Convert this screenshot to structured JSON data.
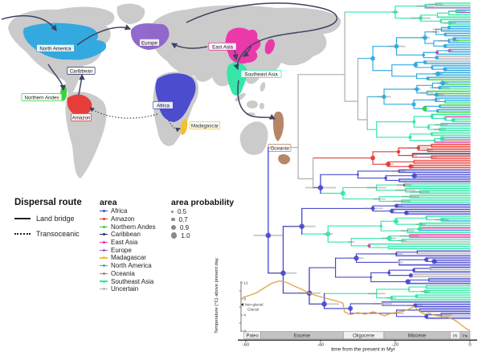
{
  "map": {
    "region_labels": [
      {
        "id": "northamerica",
        "label": "North America"
      },
      {
        "id": "europe",
        "label": "Europe"
      },
      {
        "id": "eastasia",
        "label": "East Asia"
      },
      {
        "id": "seasia",
        "label": "Southeast Asia"
      },
      {
        "id": "caribbean",
        "label": "Caribbean"
      },
      {
        "id": "andes",
        "label": "Northern Andes"
      },
      {
        "id": "amazon",
        "label": "Amazon"
      },
      {
        "id": "africa",
        "label": "Africa"
      },
      {
        "id": "madagascar",
        "label": "Madagascar"
      },
      {
        "id": "oceania",
        "label": "Oceania"
      }
    ]
  },
  "legend": {
    "dispersal": {
      "title": "Dispersal route",
      "items": [
        {
          "label": "Land bridge",
          "style": "solid"
        },
        {
          "label": "Transoceanic",
          "style": "dotted"
        }
      ]
    },
    "area": {
      "title": "area",
      "items": [
        {
          "key": "africa",
          "name": "Africa",
          "color": "#4545cf"
        },
        {
          "key": "amazon",
          "name": "Amazon",
          "color": "#e8352f"
        },
        {
          "key": "andes",
          "name": "Northern Andes",
          "color": "#2fd32f"
        },
        {
          "key": "caribbean",
          "name": "Caribbean",
          "color": "#1f2d69"
        },
        {
          "key": "eastasia",
          "name": "East Asia",
          "color": "#ec30a8"
        },
        {
          "key": "europe",
          "name": "Europe",
          "color": "#8b62c9"
        },
        {
          "key": "madagascar",
          "name": "Madagascar",
          "color": "#f2c12e"
        },
        {
          "key": "northamerica",
          "name": "North America",
          "color": "#2aa7e0"
        },
        {
          "key": "oceania",
          "name": "Oceania",
          "color": "#b37f5e"
        },
        {
          "key": "seasia",
          "name": "Southeast Asia",
          "color": "#2ee6a4"
        },
        {
          "key": "uncertain",
          "name": "Uncertain",
          "color": "#b3b3b3"
        }
      ]
    },
    "probability": {
      "title": "area probability",
      "items": [
        {
          "value": "0.5",
          "size": 3
        },
        {
          "value": "0.7",
          "size": 4.6
        },
        {
          "value": "0.9",
          "size": 6
        },
        {
          "value": "1.0",
          "size": 7.4
        }
      ]
    }
  },
  "axes": {
    "time": {
      "label": "time from the present in Myr",
      "ticks": [
        "-60",
        "-40",
        "-20",
        "0"
      ],
      "tick_values": [
        -60,
        -40,
        -20,
        0
      ]
    },
    "temperature": {
      "label": "Temperature (°C) above present day",
      "ticks": [
        0,
        4,
        8,
        12
      ],
      "annotations": [
        "Non-glacial",
        "Glacial"
      ]
    }
  },
  "geo_eras": [
    {
      "name": "Paleo",
      "from": -60.5,
      "to": -56,
      "shade": "light"
    },
    {
      "name": "Eocene",
      "from": -56,
      "to": -33.9,
      "shade": "dark"
    },
    {
      "name": "Oligocene",
      "from": -33.9,
      "to": -23.03,
      "shade": "light"
    },
    {
      "name": "Miocene",
      "from": -23.03,
      "to": -5.33,
      "shade": "dark"
    },
    {
      "name": "Pli",
      "from": -5.33,
      "to": -2.58,
      "shade": "light"
    },
    {
      "name": "Ple",
      "from": -2.58,
      "to": 0,
      "shade": "dark"
    }
  ],
  "chart_data": {
    "type": "composite",
    "panels": [
      {
        "type": "map-dispersal",
        "title": "Dispersal route",
        "routes": [
          {
            "from": "East Asia",
            "to": "North America",
            "type": "land bridge"
          },
          {
            "from": "North America",
            "to": "Europe",
            "type": "land bridge"
          },
          {
            "from": "East Asia",
            "to": "Europe",
            "type": "land bridge"
          },
          {
            "from": "Europe",
            "to": "East Asia",
            "type": "land bridge"
          },
          {
            "from": "East Asia",
            "to": "Southeast Asia",
            "type": "land bridge"
          },
          {
            "from": "North America",
            "to": "Northern Andes",
            "type": "land bridge"
          },
          {
            "from": "Amazon",
            "to": "Caribbean",
            "type": "land bridge"
          },
          {
            "from": "Africa",
            "to": "Amazon",
            "type": "transoceanic"
          },
          {
            "from": "Africa",
            "to": "Madagascar",
            "type": "transoceanic"
          },
          {
            "from": "Southeast Asia",
            "to": "Oceania",
            "type": "land bridge"
          }
        ]
      },
      {
        "type": "phylogeny",
        "time_range": [
          -60,
          0
        ],
        "seed": 7,
        "tip_total": 137,
        "clades": {
          "A": {
            "n": 10,
            "root": -20,
            "color": "seasia",
            "mix": [
              [
                "northamerica",
                0.2
              ],
              [
                "europe",
                0.1
              ]
            ]
          },
          "B": {
            "n": 24,
            "root": -26,
            "color": "northamerica",
            "mix": [
              [
                "eastasia",
                0.12
              ],
              [
                "europe",
                0.1
              ],
              [
                "andes",
                0.07
              ],
              [
                "uncertain",
                0.08
              ]
            ]
          },
          "C": {
            "n": 14,
            "root": -23,
            "color": "northamerica",
            "mix": [
              [
                "andes",
                0.18
              ],
              [
                "seasia",
                0.15
              ]
            ]
          },
          "D": {
            "n": 13,
            "root": -25,
            "color": "seasia",
            "mix": [
              [
                "northamerica",
                0.28
              ],
              [
                "eastasia",
                0.15
              ],
              [
                "oceania",
                0.1
              ]
            ]
          },
          "E": {
            "n": 11,
            "root": -26,
            "color": "amazon",
            "mix": [
              [
                "uncertain",
                0.12
              ],
              [
                "caribbean",
                0.08
              ]
            ]
          },
          "F": {
            "n": 6,
            "root": -30,
            "color": "africa",
            "mix": [
              [
                "amazon",
                0.2
              ]
            ]
          },
          "G": {
            "n": 9,
            "root": -34,
            "color": "seasia",
            "mix": [
              [
                "amazon",
                0.25
              ]
            ]
          },
          "H": {
            "n": 5,
            "root": -26,
            "color": "africa",
            "mix": []
          },
          "I": {
            "n": 15,
            "root": -38,
            "color": "seasia",
            "mix": [
              [
                "eastasia",
                0.15
              ],
              [
                "northamerica",
                0.1
              ],
              [
                "uncertain",
                0.1
              ]
            ]
          },
          "J": {
            "n": 15,
            "root": -36,
            "color": "africa",
            "mix": [
              [
                "uncertain",
                0.12
              ],
              [
                "madagascar",
                0.08
              ]
            ]
          },
          "K": {
            "n": 7,
            "root": -25,
            "color": "seasia",
            "mix": [
              [
                "eastasia",
                0.1
              ]
            ]
          },
          "L": {
            "n": 8,
            "root": -32,
            "color": "africa",
            "mix": [
              [
                "uncertain",
                0.1
              ]
            ]
          }
        },
        "backbone": {
          "age": -54,
          "color": "africa",
          "circle": true,
          "children": [
            {
              "age": -46,
              "color": "uncertain",
              "children": [
                {
                  "age": -33.5,
                  "color": "uncertain",
                  "children": [
                    {
                      "clade": "A"
                    },
                    {
                      "age": -30,
                      "color": "uncertain",
                      "children": [
                        {
                          "clade": "B"
                        },
                        {
                          "age": -27.5,
                          "color": "uncertain",
                          "children": [
                            {
                              "clade": "C"
                            },
                            {
                              "clade": "D"
                            }
                          ]
                        }
                      ]
                    }
                  ]
                },
                {
                  "age": -42,
                  "color": "uncertain",
                  "children": [
                    {
                      "clade": "E"
                    },
                    {
                      "age": -40,
                      "color": "africa",
                      "circle": true,
                      "children": [
                        {
                          "clade": "F"
                        },
                        {
                          "clade": "G"
                        }
                      ]
                    }
                  ]
                }
              ]
            },
            {
              "age": -50,
              "color": "africa",
              "circle": true,
              "children": [
                {
                  "age": -45,
                  "color": "africa",
                  "circle": true,
                  "children": [
                    {
                      "clade": "H"
                    },
                    {
                      "clade": "I"
                    }
                  ]
                },
                {
                  "age": -43,
                  "color": "africa",
                  "circle": true,
                  "children": [
                    {
                      "clade": "J"
                    },
                    {
                      "age": -39,
                      "color": "africa",
                      "circle": true,
                      "children": [
                        {
                          "clade": "K"
                        },
                        {
                          "clade": "L"
                        }
                      ]
                    }
                  ]
                }
              ]
            }
          ]
        }
      },
      {
        "type": "line",
        "name": "global-temperature",
        "ylabel": "Temperature (°C) above present day",
        "points": [
          [
            -61,
            8.3
          ],
          [
            -59,
            8.9
          ],
          [
            -57,
            9.6
          ],
          [
            -55,
            10.8
          ],
          [
            -53,
            11.9
          ],
          [
            -51,
            12.5
          ],
          [
            -49,
            12.1
          ],
          [
            -47,
            11.2
          ],
          [
            -45,
            10.4
          ],
          [
            -43,
            9.4
          ],
          [
            -41,
            8.8
          ],
          [
            -39,
            8.3
          ],
          [
            -37,
            7.8
          ],
          [
            -35,
            7.3
          ],
          [
            -34,
            6.9
          ],
          [
            -33.6,
            4.8
          ],
          [
            -32,
            4.1
          ],
          [
            -30,
            4.6
          ],
          [
            -28,
            4.2
          ],
          [
            -26,
            4.8
          ],
          [
            -24.5,
            4.4
          ],
          [
            -23,
            3.8
          ],
          [
            -21.5,
            4.3
          ],
          [
            -20,
            4.6
          ],
          [
            -18,
            4.9
          ],
          [
            -16.5,
            5.4
          ],
          [
            -15,
            6.1
          ],
          [
            -14,
            5.4
          ],
          [
            -13,
            4.6
          ],
          [
            -12,
            4.2
          ],
          [
            -11,
            4.5
          ],
          [
            -10,
            4.1
          ],
          [
            -9,
            3.9
          ],
          [
            -8,
            3.7
          ],
          [
            -7,
            3.4
          ],
          [
            -6,
            3.5
          ],
          [
            -5,
            3.1
          ],
          [
            -4,
            2.7
          ],
          [
            -3,
            2.1
          ],
          [
            -2,
            1.3
          ],
          [
            -1,
            0.6
          ],
          [
            0,
            0.1
          ]
        ],
        "line_color": "#e2a23e"
      }
    ]
  }
}
